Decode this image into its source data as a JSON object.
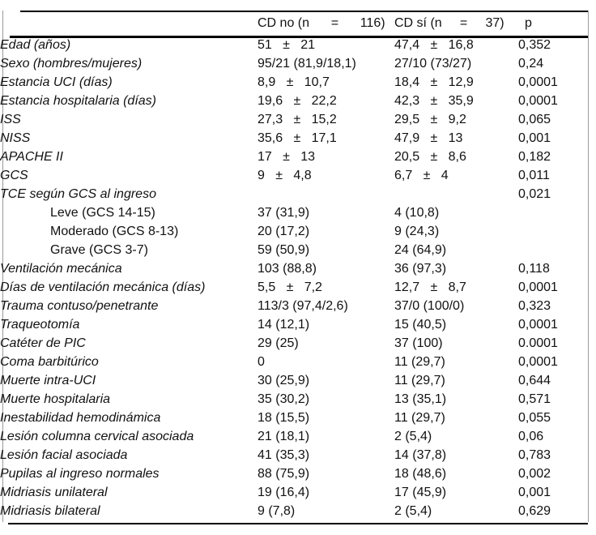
{
  "table": {
    "headers": {
      "empty": "",
      "cd_no": "CD no (n      =      116)",
      "cd_si": "CD sí (n     =     37)",
      "p": "p"
    },
    "rows": [
      {
        "label": "Edad (años)",
        "indent": false,
        "cd_no": "51   ±   21",
        "cd_si": "47,4   ±   16,8",
        "p": "0,352"
      },
      {
        "label": "Sexo (hombres/mujeres)",
        "indent": false,
        "cd_no": "95/21 (81,9/18,1)",
        "cd_si": "27/10 (73/27)",
        "p": "0,24"
      },
      {
        "label": "Estancia UCI (días)",
        "indent": false,
        "cd_no": "8,9   ±   10,7",
        "cd_si": "18,4   ±   12,9",
        "p": "0,0001"
      },
      {
        "label": "Estancia hospitalaria (días)",
        "indent": false,
        "cd_no": "19,6   ±   22,2",
        "cd_si": "42,3   ±   35,9",
        "p": "0,0001"
      },
      {
        "label": "ISS",
        "indent": false,
        "cd_no": "27,3   ±   15,2",
        "cd_si": "29,5   ±   9,2",
        "p": "0,065"
      },
      {
        "label": "NISS",
        "indent": false,
        "cd_no": "35,6   ±   17,1",
        "cd_si": "47,9   ±   13",
        "p": "0,001"
      },
      {
        "label": "APACHE II",
        "indent": false,
        "cd_no": "17   ±   13",
        "cd_si": "20,5   ±   8,6",
        "p": "0,182"
      },
      {
        "label": "GCS",
        "indent": false,
        "cd_no": "9   ±   4,8",
        "cd_si": "6,7   ±   4",
        "p": "0,011"
      },
      {
        "label": "TCE según GCS al ingreso",
        "indent": false,
        "cd_no": "",
        "cd_si": "",
        "p": "0,021"
      },
      {
        "label": "Leve (GCS 14-15)",
        "indent": true,
        "cd_no": "37 (31,9)",
        "cd_si": "4 (10,8)",
        "p": ""
      },
      {
        "label": "Moderado (GCS 8-13)",
        "indent": true,
        "cd_no": "20 (17,2)",
        "cd_si": "9 (24,3)",
        "p": ""
      },
      {
        "label": "Grave (GCS 3-7)",
        "indent": true,
        "cd_no": "59 (50,9)",
        "cd_si": "24 (64,9)",
        "p": ""
      },
      {
        "label": "Ventilación mecánica",
        "indent": false,
        "cd_no": "103 (88,8)",
        "cd_si": "36 (97,3)",
        "p": "0,118"
      },
      {
        "label": "Días de ventilación mecánica (días)",
        "indent": false,
        "cd_no": "5,5   ±   7,2",
        "cd_si": "12,7   ±   8,7",
        "p": "0,0001"
      },
      {
        "label": "Trauma contuso/penetrante",
        "indent": false,
        "cd_no": "113/3 (97,4/2,6)",
        "cd_si": "37/0 (100/0)",
        "p": "0,323"
      },
      {
        "label": "Traqueotomía",
        "indent": false,
        "cd_no": "14 (12,1)",
        "cd_si": "15 (40,5)",
        "p": "0,0001"
      },
      {
        "label": "Catéter de PIC",
        "indent": false,
        "cd_no": "29 (25)",
        "cd_si": "37 (100)",
        "p": "0.0001"
      },
      {
        "label": "Coma barbitúrico",
        "indent": false,
        "cd_no": "0",
        "cd_si": "11 (29,7)",
        "p": "0,0001"
      },
      {
        "label": "Muerte intra-UCI",
        "indent": false,
        "cd_no": "30 (25,9)",
        "cd_si": "11 (29,7)",
        "p": "0,644"
      },
      {
        "label": "Muerte hospitalaria",
        "indent": false,
        "cd_no": "35 (30,2)",
        "cd_si": "13 (35,1)",
        "p": "0,571"
      },
      {
        "label": "Inestabilidad hemodinámica",
        "indent": false,
        "cd_no": "18 (15,5)",
        "cd_si": "11 (29,7)",
        "p": "0,055"
      },
      {
        "label": "Lesión columna cervical asociada",
        "indent": false,
        "cd_no": "21 (18,1)",
        "cd_si": "2 (5,4)",
        "p": "0,06"
      },
      {
        "label": "Lesión facial asociada",
        "indent": false,
        "cd_no": "41 (35,3)",
        "cd_si": "14 (37,8)",
        "p": "0,783"
      },
      {
        "label": "Pupilas al ingreso normales",
        "indent": false,
        "cd_no": "88 (75,9)",
        "cd_si": "18 (48,6)",
        "p": "0,002"
      },
      {
        "label": "Midriasis unilateral",
        "indent": false,
        "cd_no": "19 (16,4)",
        "cd_si": "17 (45,9)",
        "p": "0,001"
      },
      {
        "label": "Midriasis bilateral",
        "indent": false,
        "cd_no": "9 (7,8)",
        "cd_si": "2 (5,4)",
        "p": "0,629"
      }
    ]
  }
}
